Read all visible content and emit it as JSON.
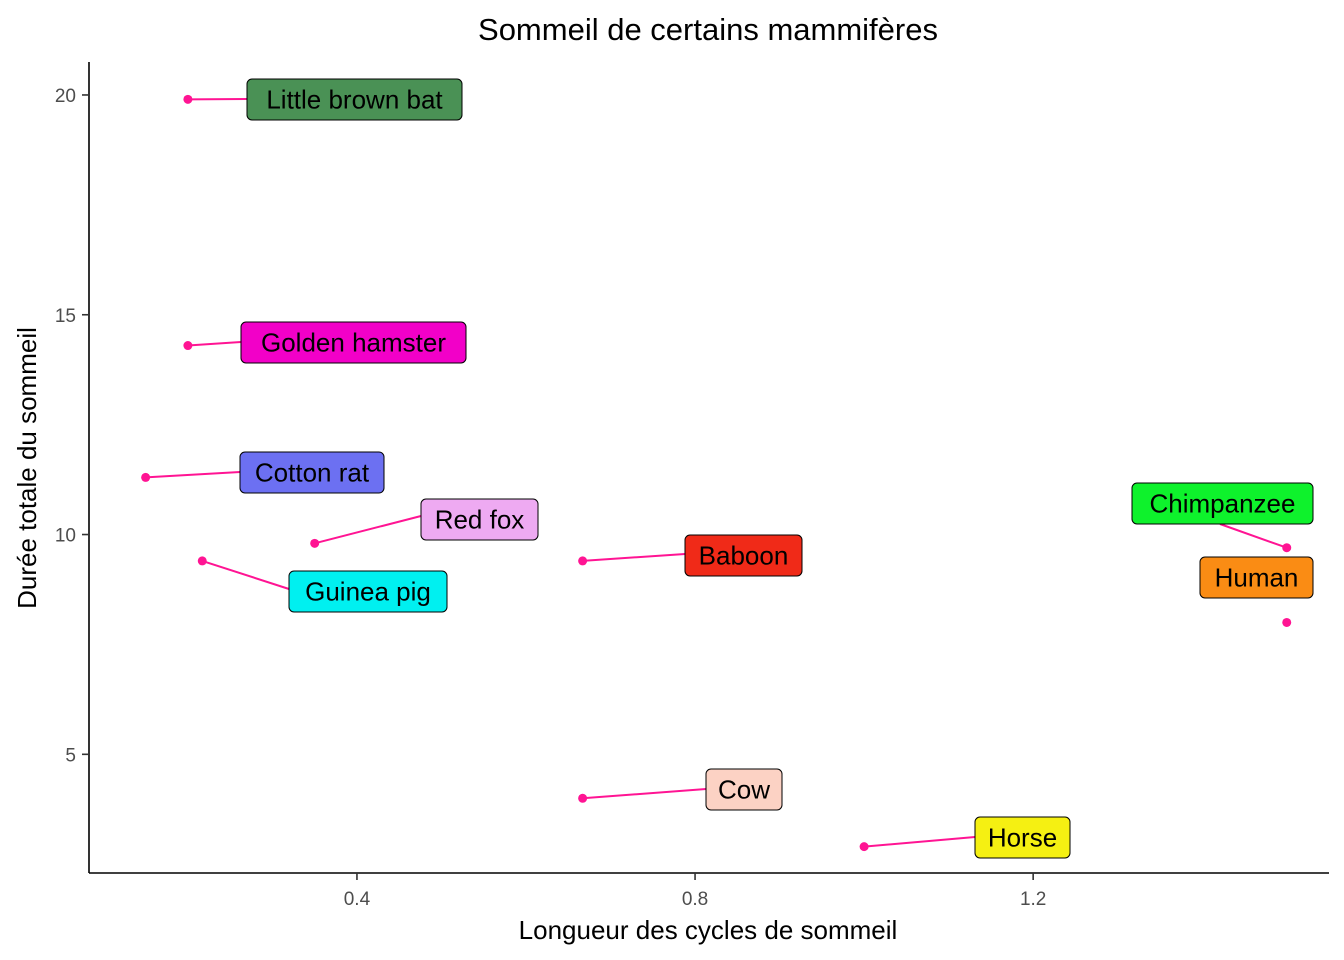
{
  "chart_data": {
    "type": "scatter",
    "title": "Sommeil de certains mammifères",
    "xlabel": "Longueur des cycles de sommeil",
    "ylabel": "Durée totale du sommeil",
    "xlim": [
      0.083,
      1.55
    ],
    "ylim": [
      2.3,
      20.75
    ],
    "xticks": [
      0.4,
      0.8,
      1.2
    ],
    "yticks": [
      5,
      10,
      15,
      20
    ],
    "xtick_labels": [
      "0.4",
      "0.8",
      "1.2"
    ],
    "ytick_labels": [
      "5",
      "10",
      "15",
      "20"
    ],
    "grid": false,
    "point_color": "#ff1493",
    "points": [
      {
        "label": "Little brown bat",
        "x": 0.2,
        "y": 19.9,
        "fill": "#4a9155"
      },
      {
        "label": "Golden hamster",
        "x": 0.2,
        "y": 14.3,
        "fill": "#f200c8"
      },
      {
        "label": "Cotton rat",
        "x": 0.15,
        "y": 11.3,
        "fill": "#6c70f2"
      },
      {
        "label": "Red fox",
        "x": 0.35,
        "y": 9.8,
        "fill": "#eeaaf2"
      },
      {
        "label": "Guinea pig",
        "x": 0.217,
        "y": 9.4,
        "fill": "#00f0f0"
      },
      {
        "label": "Baboon",
        "x": 0.667,
        "y": 9.4,
        "fill": "#f02a18"
      },
      {
        "label": "Chimpanzee",
        "x": 1.5,
        "y": 9.7,
        "fill": "#0ef22c"
      },
      {
        "label": "Human",
        "x": 1.5,
        "y": 8.0,
        "fill": "#fa8c14"
      },
      {
        "label": "Cow",
        "x": 0.667,
        "y": 4.0,
        "fill": "#fcd2c4"
      },
      {
        "label": "Horse",
        "x": 1.0,
        "y": 2.9,
        "fill": "#f5f012"
      }
    ]
  }
}
